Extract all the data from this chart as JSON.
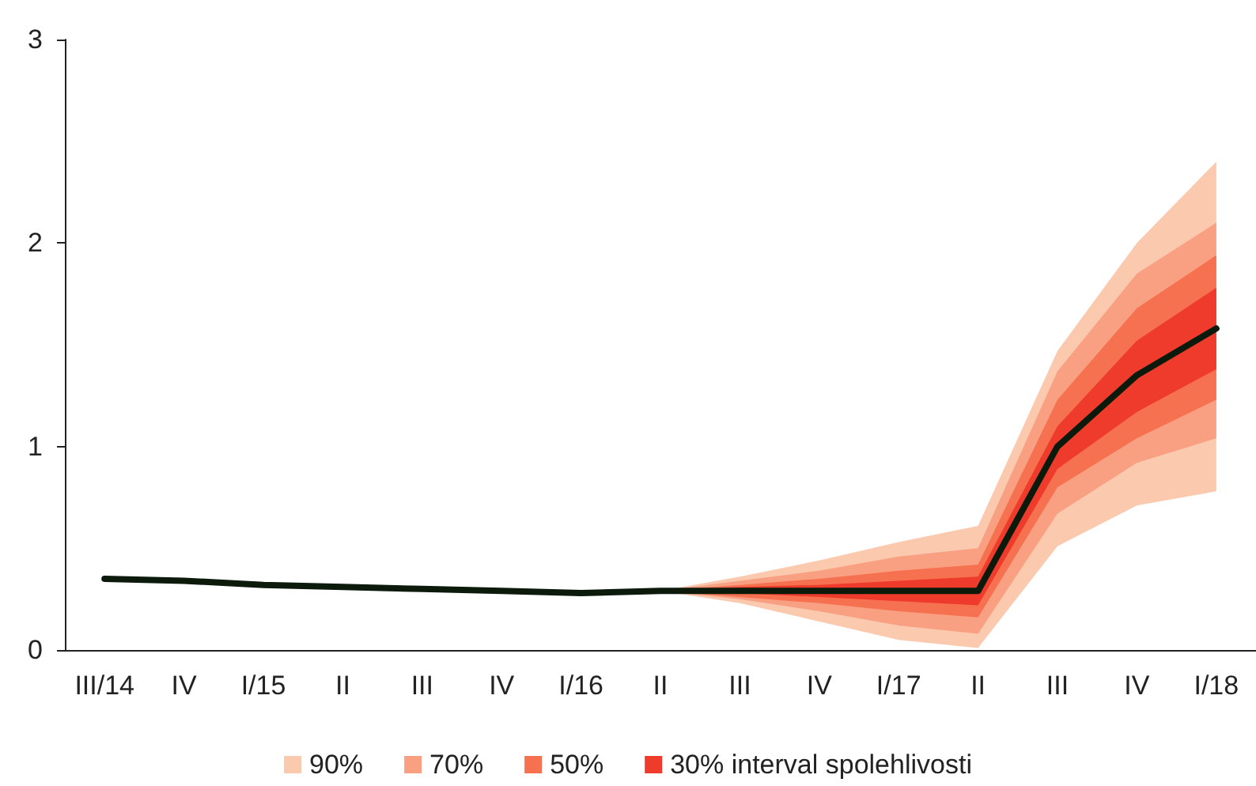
{
  "chart_data": {
    "type": "line",
    "categories": [
      "III/14",
      "IV",
      "I/15",
      "II",
      "III",
      "IV",
      "I/16",
      "II",
      "III",
      "IV",
      "I/17",
      "II",
      "III",
      "IV",
      "I/18"
    ],
    "series": [
      {
        "color": "#0b1a0b",
        "values": [
          0.35,
          0.34,
          0.32,
          0.31,
          0.3,
          0.29,
          0.28,
          0.29,
          0.29,
          0.29,
          0.29,
          0.29,
          1.0,
          1.35,
          1.58
        ]
      },
      {
        "name": "90%",
        "color": "#fbc9ae",
        "values": [
          null,
          null,
          null,
          null,
          null,
          null,
          null,
          null,
          null,
          null,
          null,
          null,
          null,
          null,
          null
        ],
        "lower": [
          null,
          null,
          null,
          null,
          null,
          null,
          null,
          0.29,
          0.23,
          0.14,
          0.05,
          0.01,
          0.51,
          0.71,
          0.78
        ],
        "upper": [
          null,
          null,
          null,
          null,
          null,
          null,
          null,
          0.29,
          0.36,
          0.44,
          0.53,
          0.61,
          1.47,
          2.0,
          2.4
        ]
      },
      {
        "name": "70%",
        "color": "#f9a083",
        "values": [
          null,
          null,
          null,
          null,
          null,
          null,
          null,
          null,
          null,
          null,
          null,
          null,
          null,
          null,
          null
        ],
        "lower": [
          null,
          null,
          null,
          null,
          null,
          null,
          null,
          0.29,
          0.25,
          0.19,
          0.12,
          0.08,
          0.67,
          0.92,
          1.04
        ],
        "upper": [
          null,
          null,
          null,
          null,
          null,
          null,
          null,
          0.29,
          0.34,
          0.39,
          0.46,
          0.5,
          1.37,
          1.85,
          2.1
        ]
      },
      {
        "name": "50%",
        "color": "#f6714f",
        "values": [
          null,
          null,
          null,
          null,
          null,
          null,
          null,
          null,
          null,
          null,
          null,
          null,
          null,
          null,
          null
        ],
        "lower": [
          null,
          null,
          null,
          null,
          null,
          null,
          null,
          0.29,
          0.26,
          0.23,
          0.19,
          0.16,
          0.8,
          1.04,
          1.23
        ],
        "upper": [
          null,
          null,
          null,
          null,
          null,
          null,
          null,
          0.29,
          0.32,
          0.35,
          0.39,
          0.42,
          1.23,
          1.68,
          1.94
        ]
      },
      {
        "name": "30% interval spolehlivosti",
        "color": "#ee3b2c",
        "values": [
          null,
          null,
          null,
          null,
          null,
          null,
          null,
          null,
          null,
          null,
          null,
          null,
          null,
          null,
          null
        ],
        "lower": [
          null,
          null,
          null,
          null,
          null,
          null,
          null,
          0.29,
          0.28,
          0.26,
          0.24,
          0.22,
          0.89,
          1.17,
          1.38
        ],
        "upper": [
          null,
          null,
          null,
          null,
          null,
          null,
          null,
          0.29,
          0.31,
          0.32,
          0.34,
          0.36,
          1.1,
          1.52,
          1.78
        ]
      }
    ],
    "ylim": [
      0,
      3
    ],
    "yticks": [
      0,
      1,
      2,
      3
    ],
    "grid": false,
    "legend": "bottom",
    "marker": "none"
  }
}
